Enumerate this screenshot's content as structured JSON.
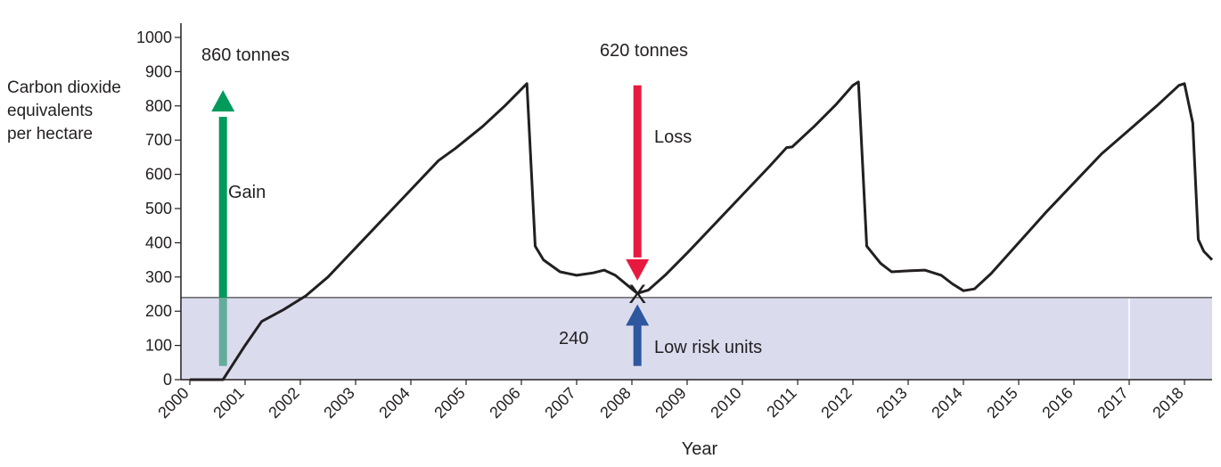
{
  "chart_data": {
    "type": "line",
    "ylabel_lines": [
      "Carbon dioxide",
      "equivalents",
      "per hectare"
    ],
    "xlabel": "Year",
    "ylim": [
      0,
      1000
    ],
    "xlim": [
      2000,
      2018.6
    ],
    "y_ticks": [
      0,
      100,
      200,
      300,
      400,
      500,
      600,
      700,
      800,
      900,
      1000
    ],
    "x_ticks": [
      2000,
      2001,
      2002,
      2003,
      2004,
      2005,
      2006,
      2007,
      2008,
      2009,
      2010,
      2011,
      2012,
      2013,
      2014,
      2015,
      2016,
      2017,
      2018
    ],
    "grid": false,
    "low_risk_band": {
      "from": 0,
      "to": 240,
      "label": "240",
      "color": "#dadcee"
    },
    "series": [
      {
        "color": "#231f20",
        "points": [
          [
            2000.0,
            0
          ],
          [
            2000.6,
            0
          ],
          [
            2001.0,
            100
          ],
          [
            2001.3,
            170
          ],
          [
            2001.7,
            205
          ],
          [
            2002.1,
            245
          ],
          [
            2002.5,
            300
          ],
          [
            2003.0,
            385
          ],
          [
            2003.5,
            470
          ],
          [
            2004.0,
            555
          ],
          [
            2004.5,
            640
          ],
          [
            2004.8,
            675
          ],
          [
            2005.3,
            740
          ],
          [
            2005.7,
            800
          ],
          [
            2006.1,
            865
          ],
          [
            2006.25,
            390
          ],
          [
            2006.4,
            350
          ],
          [
            2006.7,
            315
          ],
          [
            2007.0,
            305
          ],
          [
            2007.3,
            312
          ],
          [
            2007.5,
            320
          ],
          [
            2007.7,
            305
          ],
          [
            2008.0,
            265
          ],
          [
            2008.1,
            252
          ],
          [
            2008.3,
            262
          ],
          [
            2008.6,
            305
          ],
          [
            2009.0,
            370
          ],
          [
            2009.5,
            455
          ],
          [
            2010.0,
            540
          ],
          [
            2010.5,
            625
          ],
          [
            2010.8,
            678
          ],
          [
            2010.9,
            680
          ],
          [
            2011.3,
            740
          ],
          [
            2011.7,
            805
          ],
          [
            2012.0,
            860
          ],
          [
            2012.1,
            870
          ],
          [
            2012.25,
            390
          ],
          [
            2012.5,
            340
          ],
          [
            2012.7,
            315
          ],
          [
            2013.0,
            318
          ],
          [
            2013.3,
            320
          ],
          [
            2013.6,
            305
          ],
          [
            2013.8,
            280
          ],
          [
            2014.0,
            260
          ],
          [
            2014.2,
            265
          ],
          [
            2014.5,
            310
          ],
          [
            2015.0,
            400
          ],
          [
            2015.5,
            490
          ],
          [
            2016.0,
            575
          ],
          [
            2016.5,
            660
          ],
          [
            2017.0,
            730
          ],
          [
            2017.5,
            800
          ],
          [
            2017.9,
            860
          ],
          [
            2018.0,
            865
          ],
          [
            2018.15,
            750
          ],
          [
            2018.25,
            410
          ],
          [
            2018.35,
            375
          ],
          [
            2018.5,
            350
          ]
        ]
      }
    ],
    "annotations": {
      "gain": {
        "label": "Gain",
        "amount": "860 tonnes",
        "color": "#009a5b",
        "lower_color": "#63ac9a",
        "year": 2000.6,
        "from": 40,
        "to": 820
      },
      "loss": {
        "label": "Loss",
        "amount": "620 tonnes",
        "color": "#e8193f",
        "year": 2008.1,
        "from": 860,
        "to": 305
      },
      "low_risk": {
        "label": "Low risk units",
        "color": "#2e57a0",
        "year": 2008.1,
        "from": 40,
        "to": 210
      },
      "marker": {
        "symbol": "X",
        "year": 2008.1,
        "value": 250
      }
    }
  }
}
